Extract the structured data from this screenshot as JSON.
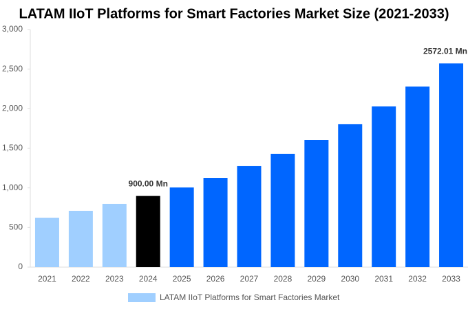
{
  "chart_data": {
    "type": "bar",
    "title": "LATAM IIoT Platforms for Smart Factories Market Size (2021-2033)",
    "categories": [
      "2021",
      "2022",
      "2023",
      "2024",
      "2025",
      "2026",
      "2027",
      "2028",
      "2029",
      "2030",
      "2031",
      "2032",
      "2033"
    ],
    "series": [
      {
        "name": "LATAM IIoT Platforms for Smart Factories Market",
        "color": "#a0cfff",
        "values": [
          624,
          711,
          798,
          900,
          1006,
          1127,
          1275,
          1431,
          1604,
          1804,
          2029,
          2280,
          2572.01
        ],
        "bar_colors": [
          "#a0cfff",
          "#a0cfff",
          "#a0cfff",
          "#000000",
          "#0066ff",
          "#0066ff",
          "#0066ff",
          "#0066ff",
          "#0066ff",
          "#0066ff",
          "#0066ff",
          "#0066ff",
          "#0066ff"
        ],
        "value_labels": [
          null,
          null,
          null,
          "900.00 Mn",
          null,
          null,
          null,
          null,
          null,
          null,
          null,
          null,
          "2572.01 Mn"
        ]
      }
    ],
    "ylim": [
      0,
      3000
    ],
    "yticks": [
      0,
      500,
      {
        "value": 1000,
        "label": "1,000"
      },
      {
        "value": 1500,
        "label": "1,500"
      },
      {
        "value": 2000,
        "label": "2,000"
      },
      {
        "value": 2500,
        "label": "2,500"
      },
      {
        "value": 3000,
        "label": "3,000"
      }
    ],
    "grid": false,
    "legend": "bottom"
  }
}
